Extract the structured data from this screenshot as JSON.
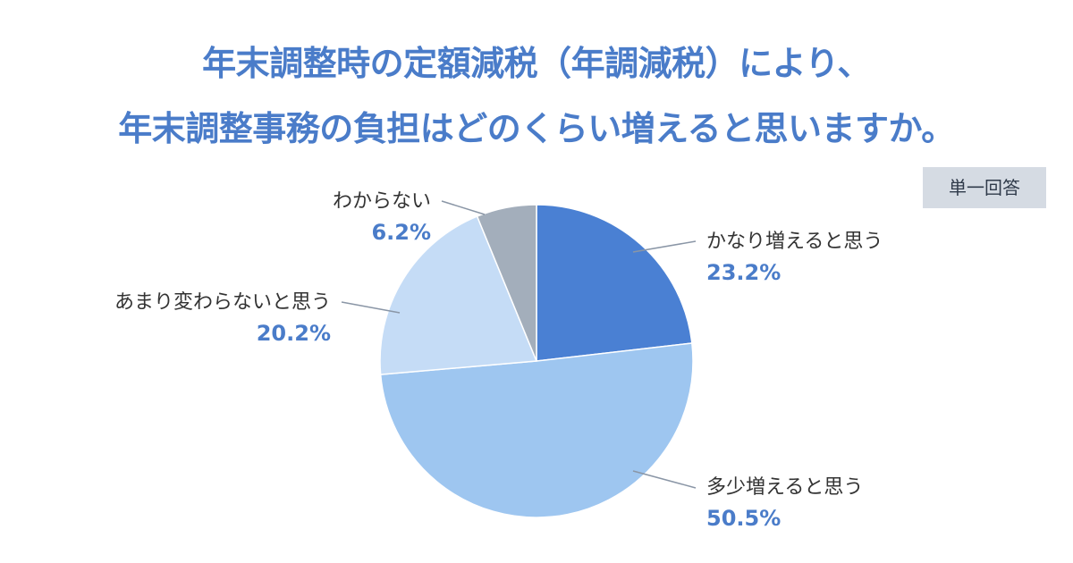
{
  "chart_data": {
    "type": "pie",
    "title_lines": [
      "年末調整時の定額減税（年調減税）により、",
      "年末調整事務の負担はどのくらい増えると思いますか。"
    ],
    "badge": "単一回答",
    "slices": [
      {
        "label": "かなり増えると思う",
        "value": 23.2,
        "value_label": "23.2%",
        "color": "#4a80d3"
      },
      {
        "label": "多少増えると思う",
        "value": 50.5,
        "value_label": "50.5%",
        "color": "#9ec6f0"
      },
      {
        "label": "あまり変わらないと思う",
        "value": 20.2,
        "value_label": "20.2%",
        "color": "#c5dcf6"
      },
      {
        "label": "わからない",
        "value": 6.2,
        "value_label": "6.2%",
        "color": "#a3aebb"
      }
    ]
  }
}
